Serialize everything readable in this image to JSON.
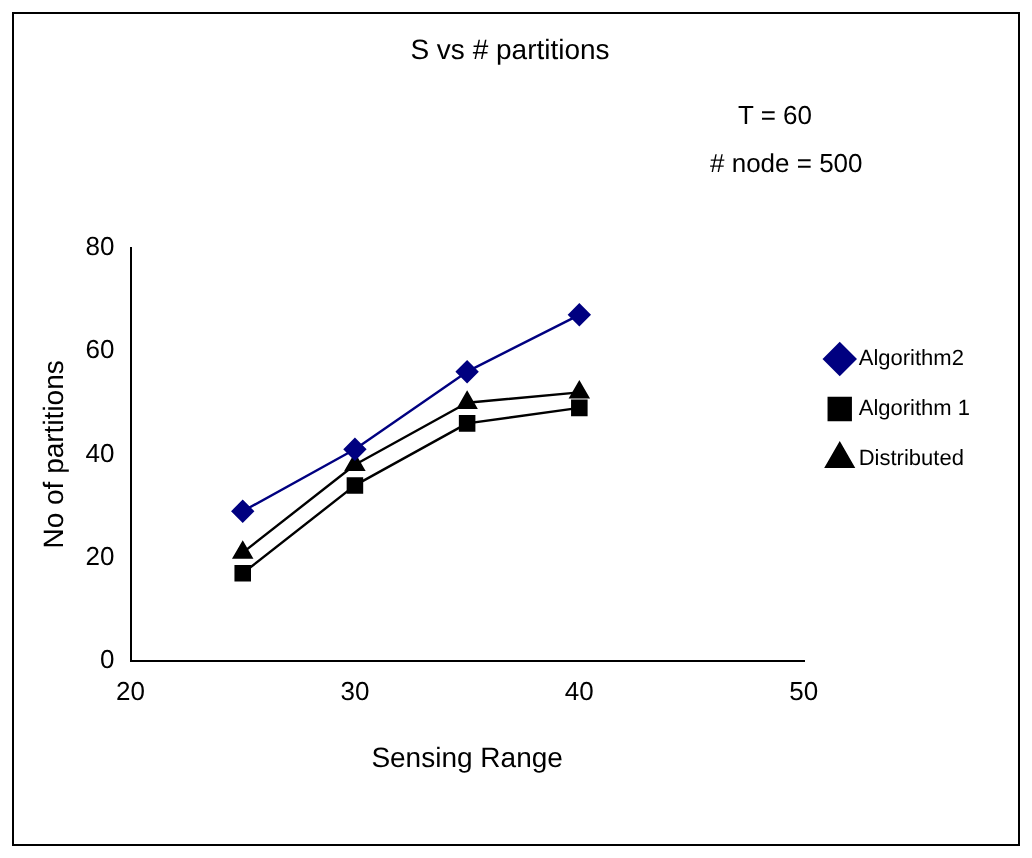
{
  "chart_data": {
    "type": "line",
    "title": "S vs # partitions",
    "xlabel": "Sensing Range",
    "ylabel": "No of partitions",
    "annotations": [
      "T = 60",
      "# node = 500"
    ],
    "x": [
      25,
      30,
      35,
      40
    ],
    "series": [
      {
        "name": "Algorithm2",
        "color": "#000080",
        "marker": "diamond",
        "values": [
          29,
          41,
          56,
          67
        ]
      },
      {
        "name": "Algorithm 1",
        "color": "#000000",
        "marker": "square",
        "values": [
          17,
          34,
          46,
          49
        ]
      },
      {
        "name": "Distributed",
        "color": "#000000",
        "marker": "triangle",
        "values": [
          21,
          38,
          50,
          52
        ]
      }
    ],
    "xlim": [
      20,
      50
    ],
    "xticks": [
      20,
      30,
      40,
      50
    ],
    "ylim": [
      0,
      80
    ],
    "yticks": [
      0,
      20,
      40,
      60,
      80
    ],
    "grid": false,
    "legend": "right"
  }
}
